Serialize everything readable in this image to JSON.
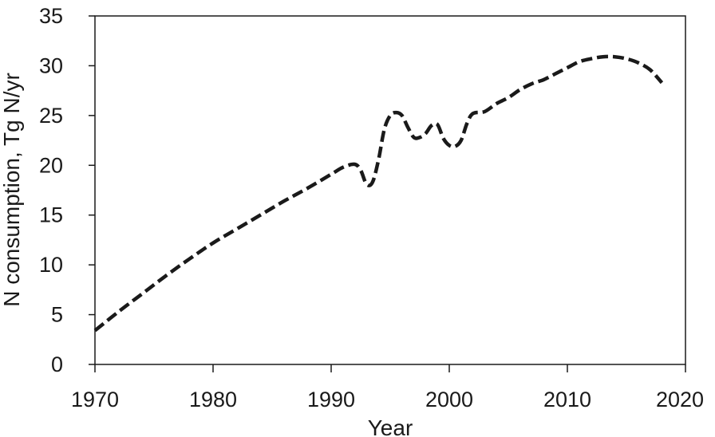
{
  "chart_data": {
    "type": "line",
    "title": "",
    "xlabel": "Year",
    "ylabel": "N consumption, Tg N/yr",
    "xlim": [
      1970,
      2020
    ],
    "ylim": [
      0,
      35
    ],
    "x_ticks": [
      1970,
      1980,
      1990,
      2000,
      2010,
      2020
    ],
    "y_ticks": [
      0,
      5,
      10,
      15,
      20,
      25,
      30,
      35
    ],
    "grid": false,
    "legend": "none",
    "series": [
      {
        "line_style": "dashed",
        "color": "#1a1a1a",
        "x": [
          1970,
          1972,
          1974,
          1976,
          1978,
          1980,
          1982,
          1984,
          1986,
          1988,
          1990,
          1991,
          1992,
          1992.5,
          1993,
          1993.5,
          1994,
          1994.5,
          1995,
          1995.5,
          1996,
          1996.5,
          1997,
          1997.5,
          1998,
          1998.5,
          1999,
          1999.5,
          2000,
          2000.5,
          2001,
          2001.5,
          2002,
          2003,
          2004,
          2005,
          2006,
          2007,
          2008,
          2009,
          2010,
          2011,
          2012,
          2013,
          2014,
          2015,
          2016,
          2017,
          2018
        ],
        "y": [
          3.4,
          5.3,
          7.1,
          8.9,
          10.6,
          12.2,
          13.6,
          15.0,
          16.4,
          17.7,
          19.1,
          19.8,
          20.1,
          19.5,
          18.1,
          18.3,
          20.5,
          23.6,
          25.0,
          25.3,
          25.0,
          23.8,
          22.8,
          22.8,
          23.2,
          24.0,
          24.1,
          22.7,
          22.0,
          21.9,
          22.5,
          24.2,
          25.2,
          25.4,
          26.2,
          26.8,
          27.6,
          28.2,
          28.6,
          29.2,
          29.8,
          30.4,
          30.7,
          30.9,
          30.9,
          30.7,
          30.3,
          29.6,
          28.3
        ]
      }
    ]
  }
}
